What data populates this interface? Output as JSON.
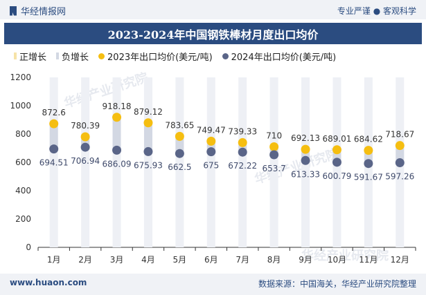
{
  "header": {
    "logo_text": "华经情报网",
    "tagline": "专业严谨 ● 客观科学"
  },
  "colors": {
    "brand": "#2b4c80",
    "pos_bar": "#f6e3a8",
    "neg_bar": "#d3d8e3",
    "dot_2023": "#f5be11",
    "dot_2024": "#5a6588"
  },
  "legend": {
    "pos": "正增长",
    "neg": "负增长",
    "s2023": "2023年出口均价(美元/吨)",
    "s2024": "2024年出口均价(美元/吨)"
  },
  "chart_data": {
    "type": "line",
    "title": "2023-2024年中国钢铁棒材月度出口均价",
    "categories": [
      "1月",
      "2月",
      "3月",
      "4月",
      "5月",
      "6月",
      "7月",
      "8月",
      "9月",
      "10月",
      "11月",
      "12月"
    ],
    "series": [
      {
        "name": "2023年出口均价(美元/吨)",
        "values": [
          872.6,
          780.39,
          918.18,
          879.12,
          783.65,
          749.47,
          739.33,
          710,
          692.13,
          689.01,
          684.62,
          718.67
        ]
      },
      {
        "name": "2024年出口均价(美元/吨)",
        "values": [
          694.51,
          706.94,
          686.09,
          675.93,
          662.5,
          675,
          672.22,
          653.7,
          613.33,
          600.79,
          591.67,
          597.26
        ]
      }
    ],
    "y_ticks": [
      0,
      200,
      400,
      600,
      800,
      1000,
      1200
    ],
    "ylim": [
      0,
      1200
    ],
    "legend_position": "top",
    "grid": false
  },
  "watermark": "华经产业研究院",
  "footer": {
    "website": "www.huaon.com",
    "source": "数据来源：中国海关，华经产业研究院整理"
  }
}
